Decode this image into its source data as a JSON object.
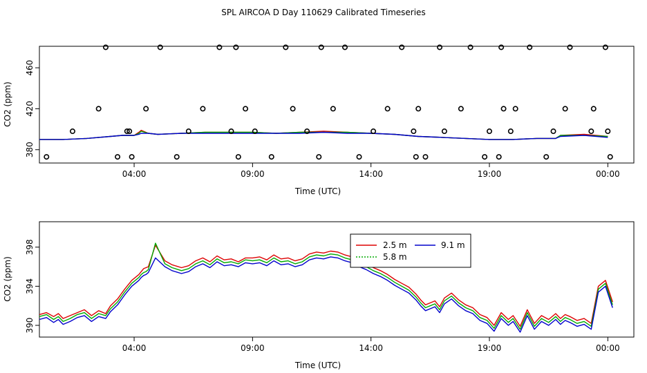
{
  "figure": {
    "title": "SPL AIRCOA D  Day 110629  Calibrated Timeseries"
  },
  "colors": {
    "series_2_5m": "#dd0000",
    "series_5_8m": "#00aa00",
    "series_9_1m": "#0000cc",
    "axis": "#000000"
  },
  "chart_data": [
    {
      "type": "scatter",
      "title": "",
      "xlabel": "Time (UTC)",
      "ylabel": "CO2 (ppm)",
      "xlim": [
        0.0,
        25.1
      ],
      "ylim": [
        367,
        481
      ],
      "x_ticks": [
        {
          "value": 4,
          "label": "04:00"
        },
        {
          "value": 9,
          "label": "09:00"
        },
        {
          "value": 14,
          "label": "14:00"
        },
        {
          "value": 19,
          "label": "19:00"
        },
        {
          "value": 24,
          "label": "00:00"
        }
      ],
      "y_ticks": [
        {
          "value": 380,
          "label": "380"
        },
        {
          "value": 420,
          "label": "420"
        },
        {
          "value": 460,
          "label": "460"
        }
      ],
      "points": {
        "x": [
          0.3,
          1.4,
          2.5,
          2.8,
          3.3,
          3.7,
          3.8,
          3.9,
          4.5,
          5.1,
          5.8,
          6.3,
          6.9,
          7.6,
          8.1,
          8.3,
          8.4,
          8.7,
          9.1,
          9.8,
          10.4,
          10.7,
          11.3,
          11.8,
          11.9,
          12.4,
          12.9,
          13.5,
          14.1,
          14.7,
          15.3,
          15.8,
          15.9,
          16.0,
          16.3,
          16.9,
          17.1,
          17.8,
          18.2,
          18.8,
          19.0,
          19.4,
          19.5,
          19.6,
          19.9,
          20.1,
          20.7,
          21.4,
          21.7,
          22.2,
          22.4,
          23.3,
          23.4,
          23.9,
          24.0,
          24.1
        ]
      },
      "points_y": [
        373,
        398,
        420,
        480,
        373,
        398,
        398,
        373,
        420,
        480,
        373,
        398,
        420,
        480,
        398,
        480,
        373,
        420,
        398,
        373,
        480,
        420,
        398,
        373,
        480,
        420,
        480,
        373,
        398,
        420,
        480,
        398,
        373,
        420,
        373,
        480,
        398,
        420,
        480,
        373,
        398,
        373,
        480,
        420,
        398,
        420,
        480,
        373,
        398,
        420,
        480,
        398,
        420,
        480,
        398,
        373
      ],
      "series": [
        {
          "name": "2.5 m",
          "color_key": "series_2_5m",
          "x": [
            0,
            1,
            2,
            3,
            3.5,
            4,
            4.2,
            4.3,
            4.6,
            5,
            6,
            7,
            8,
            9,
            10,
            11,
            12,
            13,
            14,
            15,
            16,
            17,
            18,
            19,
            20,
            21,
            21.8,
            22,
            23,
            24
          ],
          "values": [
            390,
            390,
            391,
            393,
            394,
            394,
            397,
            399,
            396,
            395,
            396,
            397,
            397,
            397,
            396,
            397,
            398,
            397,
            396,
            395,
            393,
            392,
            391,
            390,
            390,
            391,
            391,
            394,
            395,
            393
          ]
        },
        {
          "name": "5.8 m",
          "color_key": "series_5_8m",
          "x": [
            0,
            1,
            2,
            3,
            3.5,
            4,
            4.2,
            4.3,
            4.6,
            5,
            6,
            7,
            8,
            9,
            10,
            11,
            12,
            13,
            14,
            15,
            16,
            17,
            18,
            19,
            20,
            21,
            21.8,
            22,
            23,
            24
          ],
          "values": [
            390,
            390,
            391,
            393,
            394,
            394,
            396,
            398,
            396,
            395,
            396,
            397,
            397,
            397,
            396,
            397,
            397,
            397,
            396,
            395,
            393,
            392,
            391,
            390,
            390,
            391,
            391,
            394,
            394,
            393
          ]
        },
        {
          "name": "9.1 m",
          "color_key": "series_9_1m",
          "x": [
            0,
            1,
            2,
            3,
            3.5,
            4,
            4.2,
            4.3,
            4.6,
            5,
            6,
            7,
            8,
            9,
            10,
            11,
            12,
            13,
            14,
            15,
            16,
            17,
            18,
            19,
            20,
            21,
            21.8,
            22,
            23,
            24
          ],
          "values": [
            390,
            390,
            391,
            393,
            394,
            394,
            395,
            396,
            396,
            395,
            396,
            396,
            396,
            396,
            396,
            396,
            397,
            396,
            396,
            395,
            393,
            392,
            391,
            390,
            390,
            391,
            391,
            393,
            394,
            392
          ]
        }
      ]
    },
    {
      "type": "line",
      "title": "",
      "xlabel": "Time (UTC)",
      "ylabel": "CO2 (ppm)",
      "xlim": [
        0.0,
        25.1
      ],
      "ylim": [
        388.8,
        400.6
      ],
      "x_ticks": [
        {
          "value": 4,
          "label": "04:00"
        },
        {
          "value": 9,
          "label": "09:00"
        },
        {
          "value": 14,
          "label": "14:00"
        },
        {
          "value": 19,
          "label": "19:00"
        },
        {
          "value": 24,
          "label": "00:00"
        }
      ],
      "y_ticks": [
        {
          "value": 390,
          "label": "390"
        },
        {
          "value": 394,
          "label": "394"
        },
        {
          "value": 398,
          "label": "398"
        }
      ],
      "legend": {
        "position": "top-center",
        "entries": [
          {
            "name": "2.5 m",
            "color_key": "series_2_5m",
            "dash": "solid"
          },
          {
            "name": "9.1 m",
            "color_key": "series_9_1m",
            "dash": "solid"
          },
          {
            "name": "5.8 m",
            "color_key": "series_5_8m",
            "dash": "dotted"
          }
        ]
      },
      "series": [
        {
          "name": "2.5 m",
          "color_key": "series_2_5m",
          "x": [
            0,
            0.3,
            0.6,
            0.8,
            1.0,
            1.3,
            1.6,
            1.9,
            2.2,
            2.5,
            2.8,
            3.0,
            3.3,
            3.6,
            3.9,
            4.2,
            4.3,
            4.4,
            4.5,
            4.6,
            4.9,
            5.3,
            5.6,
            6.0,
            6.3,
            6.6,
            6.9,
            7.2,
            7.5,
            7.8,
            8.1,
            8.4,
            8.7,
            9.0,
            9.3,
            9.6,
            9.9,
            10.2,
            10.5,
            10.8,
            11.1,
            11.4,
            11.7,
            12.0,
            12.3,
            12.6,
            12.9,
            13.2,
            13.5,
            13.8,
            14.1,
            14.4,
            14.7,
            15.0,
            15.3,
            15.6,
            15.9,
            16.1,
            16.3,
            16.5,
            16.7,
            16.9,
            17.1,
            17.4,
            17.7,
            18.0,
            18.3,
            18.6,
            18.9,
            19.2,
            19.5,
            19.8,
            20.0,
            20.3,
            20.6,
            20.9,
            21.2,
            21.5,
            21.8,
            22.0,
            22.2,
            22.4,
            22.7,
            23.0,
            23.3,
            23.6,
            23.9,
            24.2
          ],
          "values": [
            391.1,
            391.3,
            390.9,
            391.2,
            390.7,
            391.0,
            391.3,
            391.6,
            391.0,
            391.5,
            391.2,
            392.0,
            392.7,
            393.7,
            394.6,
            395.2,
            395.5,
            395.8,
            395.9,
            396.0,
            398.2,
            396.6,
            396.2,
            395.9,
            396.1,
            396.6,
            396.9,
            396.5,
            397.1,
            396.7,
            396.8,
            396.5,
            396.9,
            396.9,
            397.0,
            396.7,
            397.2,
            396.8,
            396.9,
            396.6,
            396.8,
            397.3,
            397.5,
            397.4,
            397.6,
            397.5,
            397.2,
            397.0,
            396.6,
            396.3,
            395.9,
            395.6,
            395.2,
            394.7,
            394.3,
            393.9,
            393.2,
            392.6,
            392.1,
            392.3,
            392.5,
            391.9,
            392.8,
            393.3,
            392.6,
            392.1,
            391.8,
            391.1,
            390.8,
            390.0,
            391.3,
            390.6,
            391.0,
            389.9,
            391.6,
            390.2,
            391.0,
            390.6,
            391.2,
            390.7,
            391.1,
            390.9,
            390.5,
            390.7,
            390.2,
            394.0,
            394.6,
            392.4
          ]
        },
        {
          "name": "5.8 m",
          "color_key": "series_5_8m",
          "x": [
            0,
            0.3,
            0.6,
            0.8,
            1.0,
            1.3,
            1.6,
            1.9,
            2.2,
            2.5,
            2.8,
            3.0,
            3.3,
            3.6,
            3.9,
            4.2,
            4.3,
            4.4,
            4.5,
            4.6,
            4.9,
            5.3,
            5.6,
            6.0,
            6.3,
            6.6,
            6.9,
            7.2,
            7.5,
            7.8,
            8.1,
            8.4,
            8.7,
            9.0,
            9.3,
            9.6,
            9.9,
            10.2,
            10.5,
            10.8,
            11.1,
            11.4,
            11.7,
            12.0,
            12.3,
            12.6,
            12.9,
            13.2,
            13.5,
            13.8,
            14.1,
            14.4,
            14.7,
            15.0,
            15.3,
            15.6,
            15.9,
            16.1,
            16.3,
            16.5,
            16.7,
            16.9,
            17.1,
            17.4,
            17.7,
            18.0,
            18.3,
            18.6,
            18.9,
            19.2,
            19.5,
            19.8,
            20.0,
            20.3,
            20.6,
            20.9,
            21.2,
            21.5,
            21.8,
            22.0,
            22.2,
            22.4,
            22.7,
            23.0,
            23.3,
            23.6,
            23.9,
            24.2
          ],
          "values": [
            390.9,
            391.1,
            390.6,
            390.9,
            390.4,
            390.7,
            391.1,
            391.3,
            390.7,
            391.2,
            391.0,
            391.7,
            392.4,
            393.4,
            394.3,
            394.9,
            395.2,
            395.4,
            395.5,
            395.7,
            398.4,
            396.3,
            395.9,
            395.6,
            395.8,
            396.3,
            396.6,
            396.2,
            396.8,
            396.4,
            396.5,
            396.3,
            396.7,
            396.6,
            396.7,
            396.4,
            396.9,
            396.5,
            396.6,
            396.3,
            396.5,
            397.0,
            397.2,
            397.1,
            397.3,
            397.2,
            396.9,
            396.7,
            396.3,
            396.0,
            395.6,
            395.3,
            394.9,
            394.4,
            394.0,
            393.6,
            392.9,
            392.3,
            391.8,
            392.0,
            392.2,
            391.6,
            392.5,
            393.0,
            392.3,
            391.8,
            391.5,
            390.8,
            390.5,
            389.7,
            391.0,
            390.3,
            390.7,
            389.6,
            391.3,
            389.9,
            390.7,
            390.3,
            390.9,
            390.4,
            390.8,
            390.6,
            390.2,
            390.4,
            389.9,
            393.7,
            394.3,
            392.1
          ]
        },
        {
          "name": "9.1 m",
          "color_key": "series_9_1m",
          "x": [
            0,
            0.3,
            0.6,
            0.8,
            1.0,
            1.3,
            1.6,
            1.9,
            2.2,
            2.5,
            2.8,
            3.0,
            3.3,
            3.6,
            3.9,
            4.2,
            4.3,
            4.4,
            4.5,
            4.6,
            4.9,
            5.3,
            5.6,
            6.0,
            6.3,
            6.6,
            6.9,
            7.2,
            7.5,
            7.8,
            8.1,
            8.4,
            8.7,
            9.0,
            9.3,
            9.6,
            9.9,
            10.2,
            10.5,
            10.8,
            11.1,
            11.4,
            11.7,
            12.0,
            12.3,
            12.6,
            12.9,
            13.2,
            13.5,
            13.8,
            14.1,
            14.4,
            14.7,
            15.0,
            15.3,
            15.6,
            15.9,
            16.1,
            16.3,
            16.5,
            16.7,
            16.9,
            17.1,
            17.4,
            17.7,
            18.0,
            18.3,
            18.6,
            18.9,
            19.2,
            19.5,
            19.8,
            20.0,
            20.3,
            20.6,
            20.9,
            21.2,
            21.5,
            21.8,
            22.0,
            22.2,
            22.4,
            22.7,
            23.0,
            23.3,
            23.6,
            23.9,
            24.2
          ],
          "values": [
            390.6,
            390.8,
            390.3,
            390.6,
            390.1,
            390.4,
            390.8,
            391.0,
            390.4,
            390.9,
            390.7,
            391.4,
            392.1,
            393.1,
            394.0,
            394.6,
            394.9,
            395.1,
            395.2,
            395.4,
            396.9,
            396.0,
            395.6,
            395.3,
            395.5,
            396.0,
            396.3,
            395.9,
            396.5,
            396.1,
            396.2,
            396.0,
            396.4,
            396.3,
            396.4,
            396.1,
            396.6,
            396.2,
            396.3,
            396.0,
            396.2,
            396.7,
            396.9,
            396.8,
            397.0,
            396.9,
            396.6,
            396.4,
            396.0,
            395.7,
            395.3,
            395.0,
            394.6,
            394.1,
            393.7,
            393.3,
            392.6,
            392.0,
            391.5,
            391.7,
            391.9,
            391.3,
            392.2,
            392.7,
            392.0,
            391.5,
            391.2,
            390.5,
            390.2,
            389.4,
            390.7,
            390.0,
            390.4,
            389.3,
            391.0,
            389.6,
            390.4,
            390.0,
            390.6,
            390.1,
            390.5,
            390.3,
            389.9,
            390.1,
            389.6,
            393.4,
            394.0,
            391.8
          ]
        }
      ]
    }
  ]
}
